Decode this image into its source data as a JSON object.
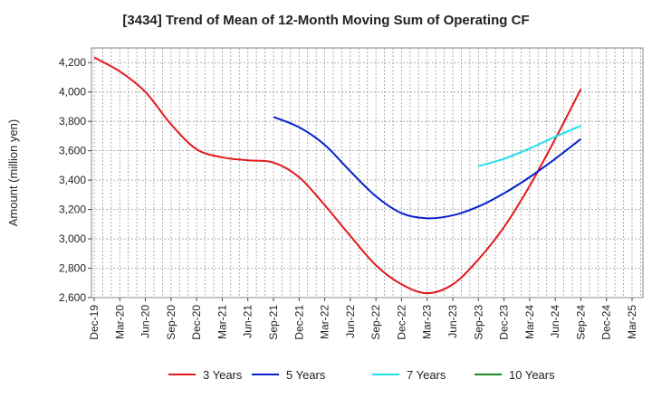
{
  "chart_data": {
    "type": "line",
    "title": "[3434]  Trend of Mean of 12-Month Moving Sum of Operating CF",
    "xlabel": "",
    "ylabel": "Amount (million yen)",
    "ylim": [
      2600,
      4300
    ],
    "yticks": [
      2600,
      2800,
      3000,
      3200,
      3400,
      3600,
      3800,
      4000,
      4200
    ],
    "ytick_labels": [
      "2,600",
      "2,800",
      "3,000",
      "3,200",
      "3,400",
      "3,600",
      "3,800",
      "4,000",
      "4,200"
    ],
    "x": [
      "Dec-19",
      "Mar-20",
      "Jun-20",
      "Sep-20",
      "Dec-20",
      "Mar-21",
      "Jun-21",
      "Sep-21",
      "Dec-21",
      "Mar-22",
      "Jun-22",
      "Sep-22",
      "Dec-22",
      "Mar-23",
      "Jun-23",
      "Sep-23",
      "Dec-23",
      "Mar-24",
      "Jun-24",
      "Sep-24",
      "Dec-24",
      "Mar-25"
    ],
    "grid": true,
    "legend_position": "bottom",
    "series": [
      {
        "name": "3 Years",
        "color": "#e31a1c",
        "values": [
          4235,
          4140,
          4000,
          3780,
          3610,
          3555,
          3535,
          3520,
          3420,
          3230,
          3020,
          2820,
          2690,
          2630,
          2690,
          2860,
          3080,
          3360,
          3680,
          4020,
          null,
          null
        ]
      },
      {
        "name": "5 Years",
        "color": "#0a1fcc",
        "values": [
          null,
          null,
          null,
          null,
          null,
          null,
          null,
          3830,
          3760,
          3640,
          3460,
          3290,
          3175,
          3140,
          3160,
          3220,
          3310,
          3420,
          3545,
          3680,
          null,
          null
        ]
      },
      {
        "name": "7 Years",
        "color": "#22e0ee",
        "values": [
          null,
          null,
          null,
          null,
          null,
          null,
          null,
          null,
          null,
          null,
          null,
          null,
          null,
          null,
          null,
          3495,
          3545,
          3615,
          3695,
          3770,
          null,
          null
        ]
      },
      {
        "name": "10 Years",
        "color": "#1a8a1a",
        "values": [
          null,
          null,
          null,
          null,
          null,
          null,
          null,
          null,
          null,
          null,
          null,
          null,
          null,
          null,
          null,
          null,
          null,
          null,
          null,
          null,
          null,
          null
        ]
      }
    ]
  }
}
